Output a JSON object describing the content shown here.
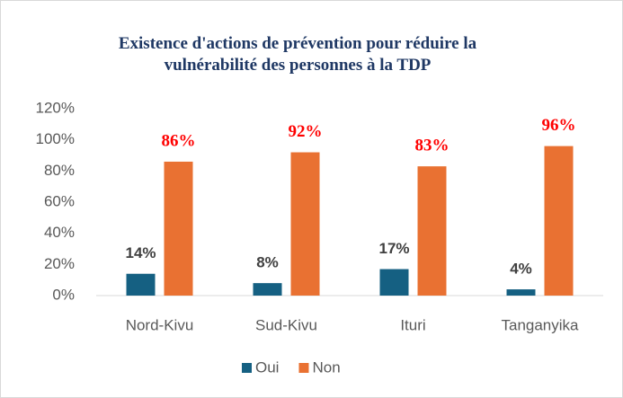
{
  "chart_data": {
    "type": "bar",
    "title": "Existence d'actions de prévention pour réduire la vulnérabilité des personnes à la TDP",
    "categories": [
      "Nord-Kivu",
      "Sud-Kivu",
      "Ituri",
      "Tanganyika"
    ],
    "series": [
      {
        "name": "Oui",
        "color": "#156082",
        "label_color": "#404040",
        "values": [
          14,
          8,
          17,
          4
        ],
        "value_labels": [
          "14%",
          "8%",
          "17%",
          "4%"
        ]
      },
      {
        "name": "Non",
        "color": "#e97132",
        "label_color": "#ff0000",
        "values": [
          86,
          92,
          83,
          96
        ],
        "value_labels": [
          "86%",
          "92%",
          "83%",
          "96%"
        ]
      }
    ],
    "ylim": [
      0,
      120
    ],
    "yticks": [
      {
        "value": 0,
        "label": "0%"
      },
      {
        "value": 20,
        "label": "20%"
      },
      {
        "value": 40,
        "label": "40%"
      },
      {
        "value": 60,
        "label": "60%"
      },
      {
        "value": 80,
        "label": "80%"
      },
      {
        "value": 100,
        "label": "100%"
      },
      {
        "value": 120,
        "label": "120%"
      }
    ],
    "grid": false,
    "legend": "bottom"
  }
}
